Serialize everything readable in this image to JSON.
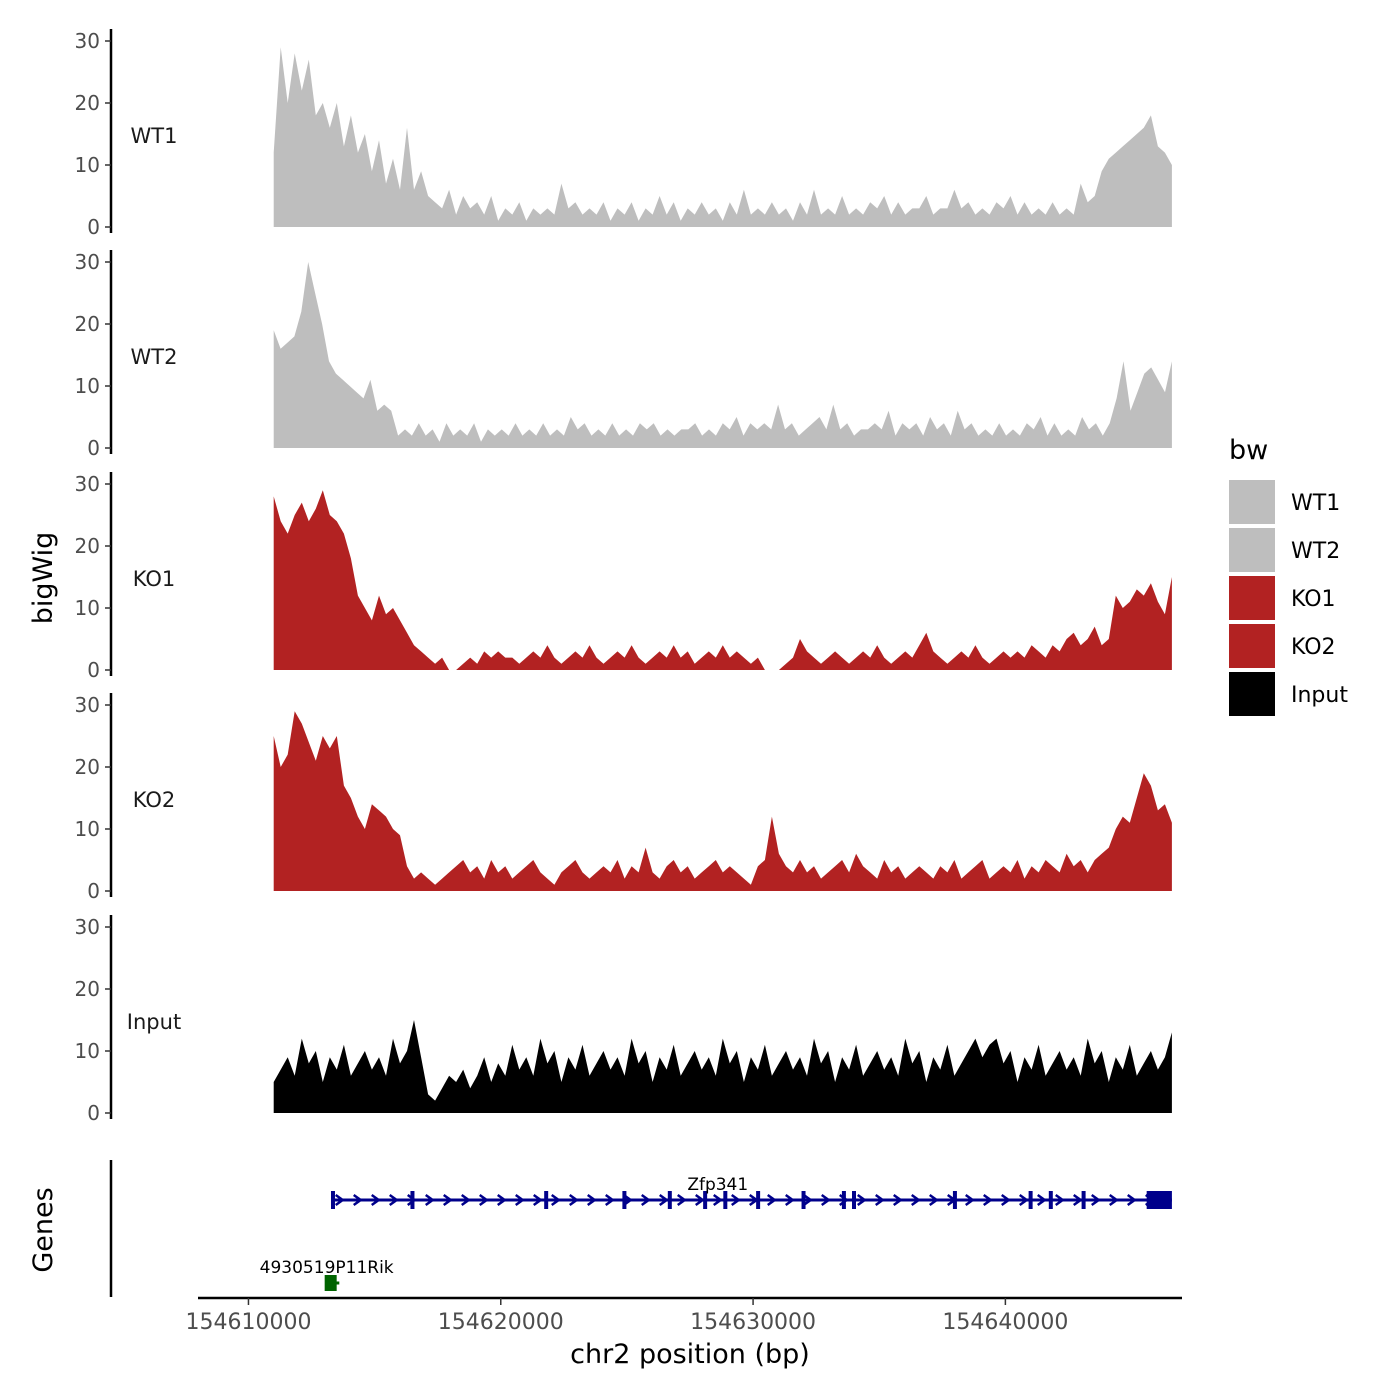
{
  "chart_data": {
    "type": "area",
    "xlabel": "chr2 position (bp)",
    "ylabel": "bigWig",
    "genes_label": "Genes",
    "xlim": [
      154608000,
      154647000
    ],
    "ylim": [
      0,
      30
    ],
    "x_ticks": [
      154610000,
      154620000,
      154630000,
      154640000
    ],
    "x_tick_labels": [
      "154610000",
      "154620000",
      "154630000",
      "154640000"
    ],
    "y_ticks": [
      0,
      10,
      20,
      30
    ],
    "y_tick_labels": [
      "0",
      "10",
      "20",
      "30"
    ],
    "data_x_range": [
      154611000,
      154646600
    ],
    "legend": {
      "title": "bw",
      "position": "right",
      "entries": [
        {
          "label": "WT1",
          "color": "#bebebe"
        },
        {
          "label": "WT2",
          "color": "#bebebe"
        },
        {
          "label": "KO1",
          "color": "#b22222"
        },
        {
          "label": "KO2",
          "color": "#b22222"
        },
        {
          "label": "Input",
          "color": "#000000"
        }
      ]
    },
    "series": [
      {
        "name": "WT1",
        "color": "#bebebe",
        "values": [
          12,
          29,
          20,
          28,
          22,
          27,
          18,
          20,
          16,
          20,
          13,
          18,
          12,
          15,
          9,
          14,
          7,
          11,
          6,
          16,
          6,
          9,
          5,
          4,
          3,
          6,
          2,
          5,
          3,
          4,
          2,
          5,
          1,
          3,
          2,
          4,
          1,
          3,
          2,
          3,
          2,
          7,
          3,
          4,
          2,
          3,
          2,
          4,
          1,
          3,
          2,
          4,
          1,
          3,
          2,
          5,
          2,
          4,
          1,
          3,
          2,
          4,
          2,
          3,
          1,
          4,
          2,
          6,
          2,
          3,
          2,
          4,
          2,
          3,
          1,
          4,
          2,
          6,
          2,
          3,
          2,
          5,
          2,
          3,
          2,
          4,
          3,
          5,
          2,
          4,
          2,
          3,
          3,
          5,
          2,
          3,
          3,
          6,
          3,
          4,
          2,
          3,
          2,
          4,
          3,
          5,
          2,
          4,
          2,
          3,
          2,
          4,
          2,
          3,
          2,
          7,
          4,
          5,
          9,
          11,
          12,
          13,
          14,
          15,
          16,
          18,
          13,
          12,
          10
        ]
      },
      {
        "name": "WT2",
        "color": "#bebebe",
        "values": [
          19,
          16,
          17,
          18,
          22,
          30,
          25,
          20,
          14,
          12,
          11,
          10,
          9,
          8,
          11,
          6,
          7,
          6,
          2,
          3,
          2,
          4,
          2,
          3,
          1,
          4,
          2,
          3,
          2,
          4,
          1,
          3,
          2,
          3,
          2,
          4,
          2,
          3,
          2,
          4,
          2,
          3,
          2,
          5,
          3,
          4,
          2,
          3,
          2,
          4,
          2,
          3,
          2,
          4,
          3,
          4,
          2,
          3,
          2,
          3,
          3,
          4,
          2,
          3,
          2,
          4,
          3,
          5,
          2,
          4,
          3,
          4,
          3,
          7,
          3,
          4,
          2,
          3,
          4,
          5,
          3,
          7,
          3,
          4,
          2,
          3,
          3,
          4,
          3,
          6,
          2,
          4,
          3,
          4,
          2,
          5,
          3,
          4,
          2,
          6,
          3,
          4,
          2,
          3,
          2,
          4,
          2,
          3,
          2,
          4,
          3,
          5,
          2,
          4,
          2,
          3,
          2,
          5,
          3,
          4,
          2,
          4,
          8,
          14,
          6,
          9,
          12,
          13,
          11,
          9,
          14
        ]
      },
      {
        "name": "KO1",
        "color": "#b22222",
        "values": [
          28,
          24,
          22,
          25,
          27,
          24,
          26,
          29,
          25,
          24,
          22,
          18,
          12,
          10,
          8,
          12,
          9,
          10,
          8,
          6,
          4,
          3,
          2,
          1,
          2,
          0,
          0,
          1,
          2,
          1,
          3,
          2,
          3,
          2,
          2,
          1,
          2,
          3,
          2,
          4,
          2,
          1,
          2,
          3,
          2,
          4,
          2,
          1,
          2,
          3,
          2,
          4,
          2,
          1,
          2,
          3,
          2,
          4,
          2,
          3,
          1,
          2,
          3,
          2,
          4,
          2,
          3,
          2,
          1,
          2,
          0,
          0,
          0,
          1,
          2,
          5,
          3,
          2,
          1,
          2,
          3,
          2,
          1,
          2,
          3,
          2,
          4,
          2,
          1,
          2,
          3,
          2,
          4,
          6,
          3,
          2,
          1,
          2,
          3,
          2,
          4,
          2,
          1,
          2,
          3,
          2,
          3,
          2,
          4,
          3,
          2,
          4,
          3,
          5,
          6,
          4,
          5,
          7,
          4,
          5,
          12,
          10,
          11,
          13,
          12,
          14,
          11,
          9,
          15
        ]
      },
      {
        "name": "KO2",
        "color": "#b22222",
        "values": [
          25,
          20,
          22,
          29,
          27,
          24,
          21,
          25,
          23,
          25,
          17,
          15,
          12,
          10,
          14,
          13,
          12,
          10,
          9,
          4,
          2,
          3,
          2,
          1,
          2,
          3,
          4,
          5,
          3,
          4,
          2,
          5,
          3,
          4,
          2,
          3,
          4,
          5,
          3,
          2,
          1,
          3,
          4,
          5,
          3,
          2,
          3,
          4,
          3,
          5,
          2,
          4,
          3,
          7,
          3,
          2,
          4,
          5,
          3,
          4,
          2,
          3,
          4,
          5,
          3,
          4,
          3,
          2,
          1,
          4,
          5,
          12,
          6,
          4,
          3,
          5,
          3,
          4,
          2,
          3,
          4,
          5,
          3,
          6,
          4,
          3,
          2,
          5,
          3,
          4,
          2,
          3,
          4,
          3,
          2,
          4,
          3,
          5,
          2,
          3,
          4,
          5,
          2,
          3,
          4,
          3,
          5,
          2,
          4,
          3,
          5,
          4,
          3,
          6,
          4,
          5,
          3,
          5,
          6,
          7,
          10,
          12,
          11,
          15,
          19,
          17,
          13,
          14,
          11
        ]
      },
      {
        "name": "Input",
        "color": "#000000",
        "values": [
          5,
          7,
          9,
          6,
          12,
          8,
          10,
          5,
          9,
          7,
          11,
          6,
          8,
          10,
          7,
          9,
          6,
          12,
          8,
          10,
          15,
          9,
          3,
          2,
          4,
          6,
          5,
          7,
          4,
          6,
          9,
          5,
          8,
          6,
          11,
          7,
          9,
          6,
          12,
          8,
          10,
          5,
          9,
          7,
          11,
          6,
          8,
          10,
          7,
          9,
          6,
          12,
          8,
          10,
          5,
          9,
          7,
          11,
          6,
          8,
          10,
          7,
          9,
          6,
          12,
          8,
          10,
          5,
          9,
          7,
          11,
          6,
          8,
          10,
          7,
          9,
          6,
          12,
          8,
          10,
          5,
          9,
          7,
          11,
          6,
          8,
          10,
          7,
          9,
          6,
          12,
          8,
          10,
          5,
          9,
          7,
          11,
          6,
          8,
          10,
          12,
          9,
          11,
          12,
          8,
          10,
          5,
          9,
          7,
          11,
          6,
          8,
          10,
          7,
          9,
          6,
          12,
          8,
          10,
          5,
          9,
          7,
          11,
          6,
          8,
          10,
          7,
          9,
          13
        ]
      }
    ],
    "genes": [
      {
        "name": "Zfp341",
        "start": 154613300,
        "end": 154646600,
        "color": "#00008b",
        "strand": "+",
        "exons": [
          154613350,
          154616500,
          154621800,
          154624900,
          154626700,
          154628100,
          154628900,
          154630200,
          154632000,
          154633600,
          154634000,
          154638000,
          154641000,
          154641800,
          154643100
        ]
      },
      {
        "name": "4930519P11Rik",
        "start": 154613100,
        "end": 154613600,
        "color": "#006400",
        "strand": "-",
        "exons": []
      }
    ]
  }
}
